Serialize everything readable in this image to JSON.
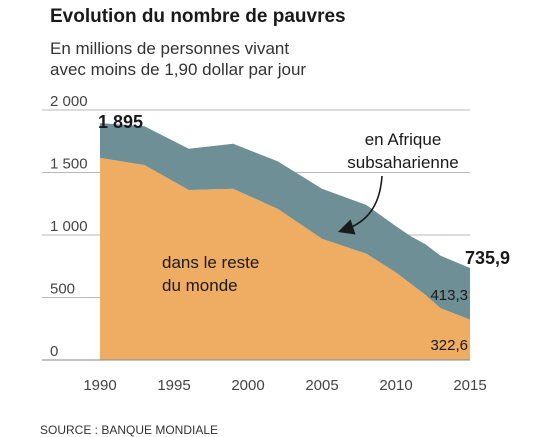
{
  "title": "Evolution du nombre de pauvres",
  "subtitle_lines": [
    "En millions de personnes vivant",
    "avec moins de 1,90 dollar par jour"
  ],
  "source": "SOURCE : BANQUE MONDIALE",
  "chart_data": {
    "type": "area",
    "stacked": true,
    "x": [
      1990,
      1993,
      1996,
      1999,
      2002,
      2005,
      2008,
      2010,
      2011,
      2012,
      2013,
      2015
    ],
    "series": [
      {
        "name": "dans le reste du monde",
        "color": "#efad63",
        "values": [
          1617,
          1560,
          1360,
          1370,
          1210,
          970,
          850,
          700,
          610,
          520,
          415,
          322.6
        ]
      },
      {
        "name": "en Afrique subsaharienne",
        "color": "#6e8f95",
        "values": [
          278,
          310,
          330,
          360,
          380,
          400,
          390,
          370,
          380,
          405,
          420,
          413.3
        ]
      }
    ],
    "x_ticks": [
      1990,
      1995,
      2000,
      2005,
      2010,
      2015
    ],
    "x_tick_labels": [
      "1990",
      "1995",
      "2000",
      "2005",
      "2010",
      "2015"
    ],
    "y_ticks": [
      0,
      500,
      1000,
      1500,
      2000
    ],
    "y_tick_labels": [
      "0",
      "500",
      "1 000",
      "1 500",
      "2 000"
    ],
    "xlim": [
      1990,
      2015
    ],
    "ylim": [
      0,
      2000
    ],
    "grid": "horizontal",
    "annotations": {
      "start_total": "1 895",
      "end_total": "735,9",
      "end_africa": "413,3",
      "end_rest": "322,6",
      "rest_label_lines": [
        "dans le reste",
        "du monde"
      ],
      "africa_label_lines": [
        "en Afrique",
        "subsaharienne"
      ]
    }
  }
}
